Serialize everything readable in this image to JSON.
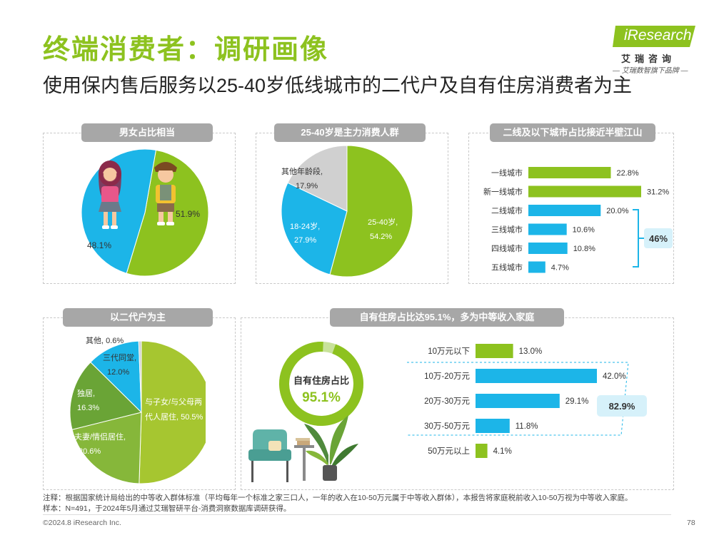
{
  "header": {
    "main_title": "终端消费者：调研画像",
    "sub_title": "使用保内售后服务以25-40岁低线城市的二代户及自有住房消费者为主",
    "logo_text": "iResearch",
    "logo_cn": "艾瑞咨询",
    "logo_tagline": "— 艾瑞数智旗下品牌 —"
  },
  "colors": {
    "green": "#8dc21f",
    "blue": "#1cb5e8",
    "gray": "#d0d0d0",
    "darkgreen": "#6aa436",
    "pill": "#a7a7a7"
  },
  "chart_data": [
    {
      "type": "pie",
      "title": "男女占比相当",
      "slices": [
        {
          "label": "",
          "value": 51.9,
          "display": "51.9%",
          "color": "#8dc21f"
        },
        {
          "label": "",
          "value": 48.1,
          "display": "48.1%",
          "color": "#1cb5e8"
        }
      ],
      "icons": [
        "girl-figure-icon",
        "boy-figure-icon"
      ]
    },
    {
      "type": "pie",
      "title": "25-40岁是主力消费人群",
      "slices": [
        {
          "label": "25-40岁,",
          "value": 54.2,
          "display": "54.2%",
          "color": "#8dc21f"
        },
        {
          "label": "18-24岁,",
          "value": 27.9,
          "display": "27.9%",
          "color": "#1cb5e8"
        },
        {
          "label": "其他年龄段,",
          "value": 17.9,
          "display": "17.9%",
          "color": "#d0d0d0"
        }
      ]
    },
    {
      "type": "bar",
      "orientation": "horizontal",
      "title": "二线及以下城市占比接近半壁江山",
      "categories": [
        "一线城市",
        "新一线城市",
        "二线城市",
        "三线城市",
        "四线城市",
        "五线城市"
      ],
      "values": [
        22.8,
        31.2,
        20.0,
        10.6,
        10.8,
        4.7
      ],
      "value_labels": [
        "22.8%",
        "31.2%",
        "20.0%",
        "10.6%",
        "10.8%",
        "4.7%"
      ],
      "colors": [
        "#8dc21f",
        "#8dc21f",
        "#1cb5e8",
        "#1cb5e8",
        "#1cb5e8",
        "#1cb5e8"
      ],
      "bracket_label": "46%"
    },
    {
      "type": "pie",
      "title": "以二代户为主",
      "slices": [
        {
          "label": "与子女/与父母两代人居住,",
          "value": 50.5,
          "display": "50.5%",
          "color": "#a6c630"
        },
        {
          "label": "夫妻/情侣居住,",
          "value": 20.6,
          "display": "20.6%",
          "color": "#86b73a"
        },
        {
          "label": "独居,",
          "value": 16.3,
          "display": "16.3%",
          "color": "#6aa436"
        },
        {
          "label": "三代同堂,",
          "value": 12.0,
          "display": "12.0%",
          "color": "#1cb5e8"
        },
        {
          "label": "其他,",
          "value": 0.6,
          "display": "0.6%",
          "color": "#d0d0d0"
        }
      ]
    },
    {
      "type": "donut",
      "title": "自有住房占比达95.1%，多为中等收入家庭",
      "center_label": "自有住房占比",
      "value": 95.1,
      "display": "95.1%"
    },
    {
      "type": "bar",
      "orientation": "horizontal",
      "title": "自有住房占比达95.1%，多为中等收入家庭",
      "categories": [
        "10万元以下",
        "10万-20万元",
        "20万-30万元",
        "30万-50万元",
        "50万元以上"
      ],
      "values": [
        13.0,
        42.0,
        29.1,
        11.8,
        4.1
      ],
      "value_labels": [
        "13.0%",
        "42.0%",
        "29.1%",
        "11.8%",
        "4.1%"
      ],
      "colors": [
        "#8dc21f",
        "#1cb5e8",
        "#1cb5e8",
        "#1cb5e8",
        "#8dc21f"
      ],
      "bracket_label": "82.9%"
    }
  ],
  "footer": {
    "note1": "注释：根据国家统计局给出的中等收入群体标准（平均每年一个标准之家三口人，一年的收入在10-50万元属于中等收入群体），本报告将家庭税前收入10-50万视为中等收入家庭。",
    "note2": "样本：N=491，于2024年5月通过艾瑞智研平台-消费洞察数据库调研获得。",
    "copyright": "©2024.8 iResearch Inc.",
    "page": "78"
  }
}
